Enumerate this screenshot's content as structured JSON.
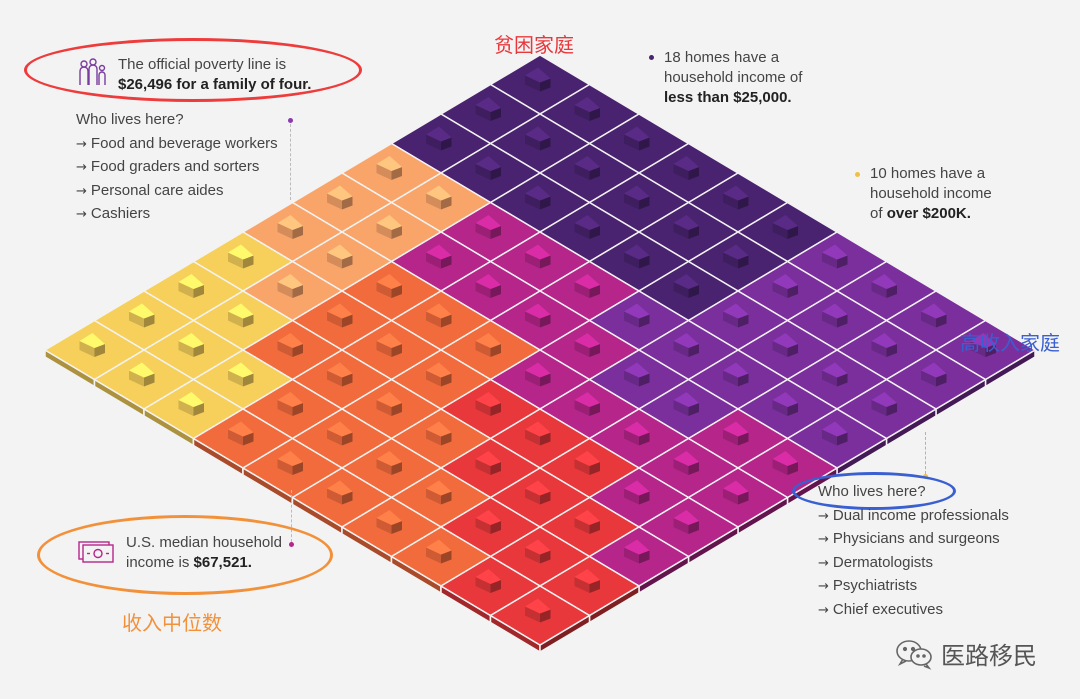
{
  "poverty_callout": {
    "line1": "The official poverty line is",
    "line2": "$26,496 for a family of four.",
    "icon": "family-icon"
  },
  "poor_jobs": {
    "heading": "Who lives here?",
    "items": [
      "Food and beverage workers",
      "Food graders and sorters",
      "Personal care aides",
      "Cashiers"
    ]
  },
  "low_income_callout": {
    "line1": "18 homes have a",
    "line2": "household income of",
    "line3": "less than $25,000."
  },
  "high_income_callout": {
    "line1": "10 homes have a",
    "line2": "household income",
    "line3_prefix": "of ",
    "line3_bold": "over $200K."
  },
  "median_callout": {
    "line1": "U.S. median household",
    "line2_prefix": "income is ",
    "line2_bold": "$67,521.",
    "icon": "money-icon"
  },
  "rich_jobs": {
    "heading": "Who lives here?",
    "items": [
      "Dual income professionals",
      "Physicians and surgeons",
      "Dermatologists",
      "Psychiatrists",
      "Chief executives"
    ]
  },
  "annotations_cn": {
    "poor": "贫困家庭",
    "high": "高收入家庭",
    "median": "收入中位数"
  },
  "watermark": {
    "text": "医路移民",
    "icon": "wechat-icon"
  },
  "colors": {
    "darkPurple": "#4a2370",
    "purple": "#7a2f9c",
    "magenta": "#b5258a",
    "red": "#e8383c",
    "orange": "#f26b3c",
    "lightOrange": "#f9a56a",
    "yellow": "#f6d05a",
    "ring_red": "#ee3b3b",
    "ring_orange": "#f2913a",
    "ring_blue": "#3a5fd0",
    "cn_red": "#e8383c",
    "cn_orange": "#f2913a",
    "cn_blue": "#3a5fd0"
  }
}
